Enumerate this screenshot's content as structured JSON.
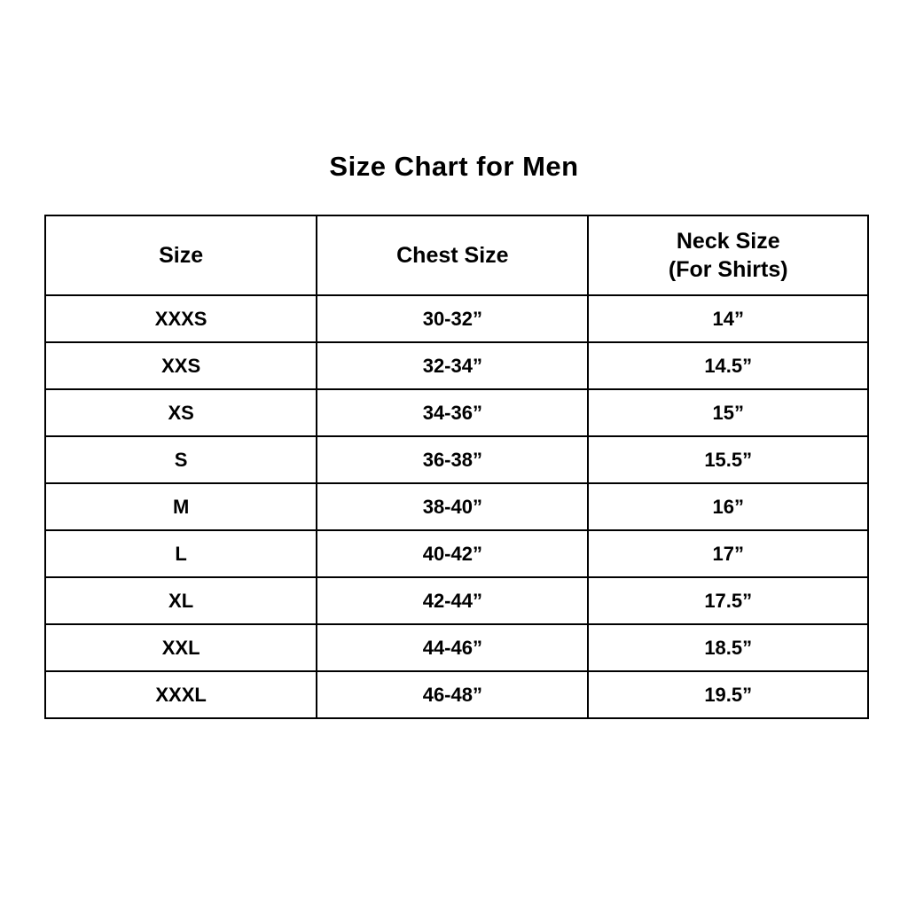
{
  "title": "Size Chart for Men",
  "colors": {
    "background": "#ffffff",
    "border": "#000000",
    "text": "#000000"
  },
  "table": {
    "headers": {
      "size": "Size",
      "chest": "Chest Size",
      "neck_line1": "Neck Size",
      "neck_line2": "(For Shirts)"
    },
    "rows": [
      {
        "size": "XXXS",
        "chest": "30-32”",
        "neck": "14”"
      },
      {
        "size": "XXS",
        "chest": "32-34”",
        "neck": "14.5”"
      },
      {
        "size": "XS",
        "chest": "34-36”",
        "neck": "15”"
      },
      {
        "size": "S",
        "chest": "36-38”",
        "neck": "15.5”"
      },
      {
        "size": "M",
        "chest": "38-40”",
        "neck": "16”"
      },
      {
        "size": "L",
        "chest": "40-42”",
        "neck": "17”"
      },
      {
        "size": "XL",
        "chest": "42-44”",
        "neck": "17.5”"
      },
      {
        "size": "XXL",
        "chest": "44-46”",
        "neck": "18.5”"
      },
      {
        "size": "XXXL",
        "chest": "46-48”",
        "neck": "19.5”"
      }
    ]
  }
}
